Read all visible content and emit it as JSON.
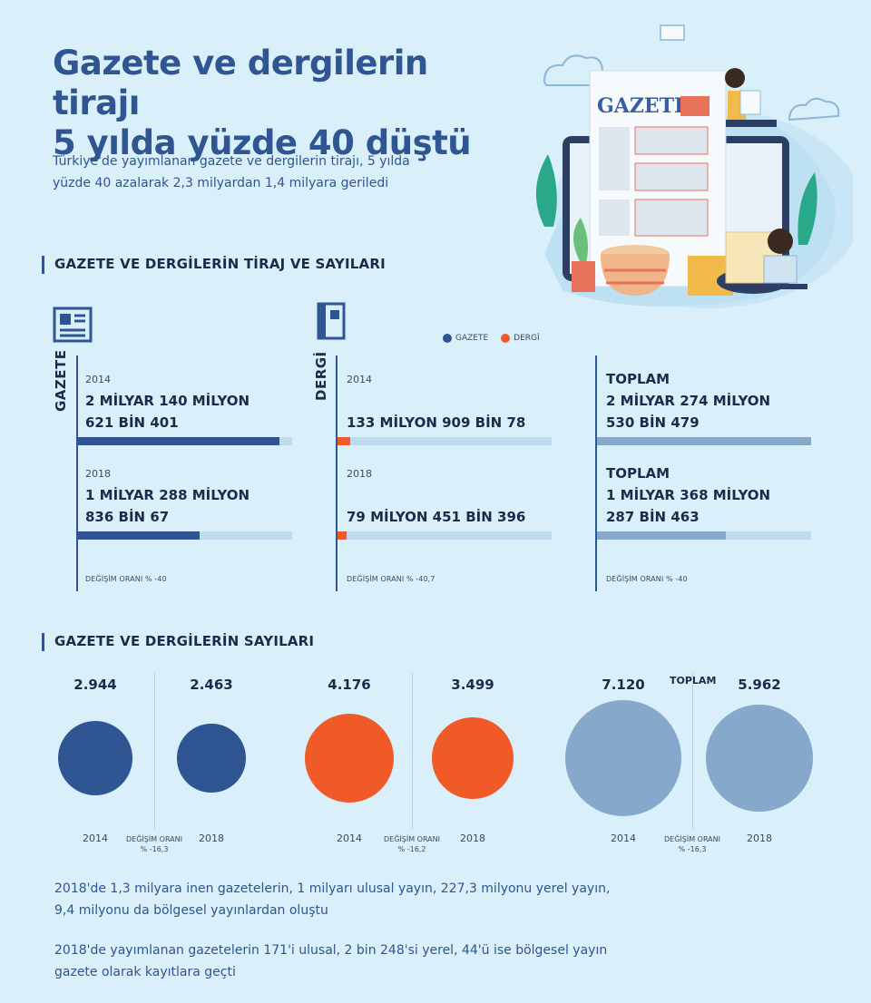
{
  "header": {
    "title_line1": "Gazete ve dergilerin tirajı",
    "title_line2": "5 yılda yüzde 40 düştü",
    "subtitle_line1": "Türkiye'de yayımlanan gazete ve dergilerin tirajı, 5 yılda",
    "subtitle_line2": "yüzde 40 azalarak 2,3 milyardan 1,4 milyara geriledi"
  },
  "illustration": {
    "sign": "GAZETE"
  },
  "section1": {
    "heading": "GAZETE VE DERGİLERİN TİRAJ VE SAYILARI"
  },
  "legend": {
    "gazete": "GAZETE",
    "dergi": "DERGİ"
  },
  "colors": {
    "gazete": "#2f5592",
    "dergi": "#f05a28",
    "toplam": "#86a8cb",
    "track": "#bedcee"
  },
  "chart_data": [
    {
      "type": "bar",
      "label": "GAZETE",
      "categories": [
        "2014",
        "2018"
      ],
      "values": [
        2140621401,
        1288836067
      ],
      "value_lines": [
        [
          "2 MİLYAR 140 MİLYON",
          "621 BİN 401"
        ],
        [
          "1 MİLYAR 288 MİLYON",
          "836 BİN 67"
        ]
      ],
      "change": "DEĞİŞİM ORANI % -40",
      "xlim": [
        0,
        2274530479
      ]
    },
    {
      "type": "bar",
      "label": "DERGİ",
      "categories": [
        "2014",
        "2018"
      ],
      "values": [
        133909078,
        79451396
      ],
      "value_lines": [
        [
          "",
          "133 MİLYON 909 BİN 78"
        ],
        [
          "",
          "79 MİLYON 451 BİN 396"
        ]
      ],
      "change": "DEĞİŞİM ORANI % -40,7",
      "xlim": [
        0,
        2274530479
      ]
    },
    {
      "type": "bar",
      "categories": [
        "TOPLAM",
        "TOPLAM"
      ],
      "values": [
        2274530479,
        1368287463
      ],
      "value_lines": [
        [
          "2 MİLYAR 274 MİLYON",
          "530 BİN 479"
        ],
        [
          "1 MİLYAR 368 MİLYON",
          "287 BİN 463"
        ]
      ],
      "change": "DEĞİŞİM ORANI % -40",
      "xlim": [
        0,
        2274530479
      ]
    },
    {
      "type": "bubble",
      "heading": "GAZETE VE DERGİLERİN SAYILARI",
      "groups": [
        {
          "name": "GAZETE",
          "values": [
            2944,
            2463
          ],
          "labels": [
            "2.944",
            "2.463"
          ],
          "years": [
            "2014",
            "2018"
          ],
          "change_label": "DEĞİŞİM ORANI",
          "change_value": "% -16,3"
        },
        {
          "name": "DERGİ",
          "values": [
            4176,
            3499
          ],
          "labels": [
            "4.176",
            "3.499"
          ],
          "years": [
            "2014",
            "2018"
          ],
          "change_label": "DEĞİŞİM ORANI",
          "change_value": "% -16,2"
        },
        {
          "name": "TOPLAM",
          "values": [
            7120,
            5962
          ],
          "labels": [
            "7.120",
            "5.962"
          ],
          "years": [
            "2014",
            "2018"
          ],
          "change_label": "DEĞİŞİM ORANI",
          "change_value": "% -16,3"
        }
      ]
    }
  ],
  "footer": {
    "p1_line1": "2018'de 1,3 milyara inen gazetelerin, 1 milyarı ulusal yayın, 227,3 milyonu yerel yayın,",
    "p1_line2": "9,4 milyonu da bölgesel yayınlardan oluştu",
    "p2_line1": "2018'de yayımlanan gazetelerin 171'i ulusal, 2 bin 248'si yerel, 44'ü ise bölgesel yayın",
    "p2_line2": "gazete olarak kayıtlara geçti"
  }
}
